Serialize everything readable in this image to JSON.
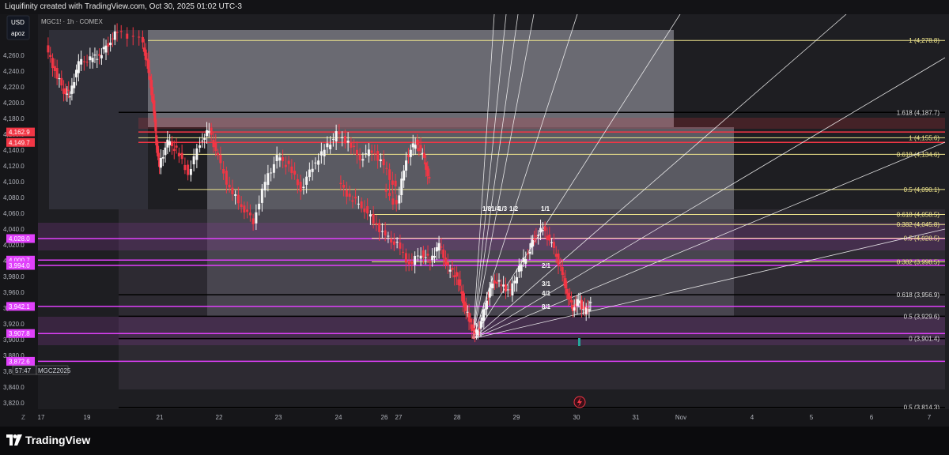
{
  "header": {
    "text": "Liquifinity created with TradingView.com, Oct 30, 2025 01:02 UTC-3"
  },
  "currency": {
    "code": "USD",
    "user": "apoz"
  },
  "symbol_line": "MGC1! · 1h · COMEX",
  "scale_button": "Z",
  "footer": {
    "logo_text": "TradingView"
  },
  "countdown": "57:47",
  "contract": "MGCZ2025",
  "chart_data": {
    "type": "candlestick",
    "symbol": "MGC1!",
    "interval": "1h",
    "exchange": "COMEX",
    "ylim": [
      3790,
      4290
    ],
    "y_ticks": [
      3800,
      3820,
      3840,
      3860,
      3880,
      3900,
      3920,
      3940,
      3960,
      3980,
      4000,
      4020,
      4040,
      4060,
      4080,
      4100,
      4120,
      4140,
      4160,
      4180,
      4200,
      4220,
      4240,
      4260
    ],
    "x_ticks": [
      "17",
      "19",
      "21",
      "22",
      "23",
      "24",
      "26",
      "27",
      "28",
      "29",
      "30",
      "31",
      "Nov",
      "4",
      "5",
      "6",
      "7"
    ],
    "price_path": [
      [
        17.2,
        4270
      ],
      [
        17.5,
        4240
      ],
      [
        17.8,
        4215
      ],
      [
        18.0,
        4210
      ],
      [
        18.3,
        4250
      ],
      [
        18.7,
        4255
      ],
      [
        19.0,
        4260
      ],
      [
        19.3,
        4275
      ],
      [
        19.6,
        4290
      ],
      [
        20.4,
        4280
      ],
      [
        20.6,
        4250
      ],
      [
        20.8,
        4200
      ],
      [
        20.9,
        4150
      ],
      [
        21.0,
        4120
      ],
      [
        21.15,
        4150
      ],
      [
        21.3,
        4140
      ],
      [
        21.5,
        4110
      ],
      [
        21.7,
        4150
      ],
      [
        21.85,
        4165
      ],
      [
        22.0,
        4130
      ],
      [
        22.2,
        4090
      ],
      [
        22.4,
        4070
      ],
      [
        22.6,
        4050
      ],
      [
        22.8,
        4100
      ],
      [
        23.0,
        4130
      ],
      [
        23.2,
        4120
      ],
      [
        23.4,
        4090
      ],
      [
        23.6,
        4120
      ],
      [
        23.8,
        4140
      ],
      [
        24.0,
        4160
      ],
      [
        24.2,
        4150
      ],
      [
        24.4,
        4130
      ],
      [
        24.6,
        4140
      ],
      [
        24.8,
        4120
      ],
      [
        25.0,
        4090
      ],
      [
        25.3,
        4070
      ],
      [
        25.5,
        4130
      ],
      [
        25.7,
        4150
      ],
      [
        25.85,
        4135
      ],
      [
        26.0,
        4100
      ],
      [
        26.2,
        4080
      ],
      [
        26.4,
        4070
      ],
      [
        26.6,
        4050
      ],
      [
        26.8,
        4030
      ],
      [
        27.0,
        4020
      ],
      [
        27.2,
        3995
      ],
      [
        27.4,
        4010
      ],
      [
        27.55,
        4000
      ],
      [
        27.7,
        4020
      ],
      [
        27.85,
        3990
      ],
      [
        28.0,
        3980
      ],
      [
        28.1,
        3950
      ],
      [
        28.2,
        3925
      ],
      [
        28.3,
        3905
      ],
      [
        28.4,
        3920
      ],
      [
        28.5,
        3950
      ],
      [
        28.6,
        3975
      ],
      [
        28.75,
        3970
      ],
      [
        28.9,
        3960
      ],
      [
        29.05,
        3990
      ],
      [
        29.2,
        4010
      ],
      [
        29.3,
        4030
      ],
      [
        29.45,
        4040
      ],
      [
        29.6,
        4020
      ],
      [
        29.75,
        3990
      ],
      [
        29.85,
        3960
      ],
      [
        29.95,
        3940
      ],
      [
        30.05,
        3950
      ],
      [
        30.15,
        3935
      ],
      [
        30.25,
        3945
      ]
    ],
    "horizontal_levels": [
      {
        "price": 4162.9,
        "label": "4,162.9",
        "color": "#f23645"
      },
      {
        "price": 4149.7,
        "label": "4,149.7",
        "color": "#f23645"
      },
      {
        "price": 4028.0,
        "label": "4,028.0",
        "color": "#e040fb"
      },
      {
        "price": 4000.7,
        "label": "4,000.7",
        "color": "#e040fb"
      },
      {
        "price": 3994.0,
        "label": "3,994.0",
        "color": "#e040fb"
      },
      {
        "price": 3942.1,
        "label": "3,942.1",
        "color": "#e040fb"
      },
      {
        "price": 3907.8,
        "label": "3,907.8",
        "color": "#e040fb"
      },
      {
        "price": 3872.6,
        "label": "3,872.6",
        "color": "#e040fb"
      }
    ],
    "fib_levels_upper": [
      {
        "label": "1 (4,278.8)",
        "price": 4278.8
      },
      {
        "label": "1.618 (4,187.7)",
        "price": 4187.7
      },
      {
        "label": "1 (4,155.6)",
        "price": 4155.6
      },
      {
        "label": "0.618 (4,134.6)",
        "price": 4134.6
      },
      {
        "label": "0.5 (4,090.1)",
        "price": 4090.1
      }
    ],
    "fib_levels_lower": [
      {
        "label": "0.618 (4,058.5)",
        "price": 4058.5
      },
      {
        "label": "0.382 (4,045.8)",
        "price": 4045.8
      },
      {
        "label": "0.5 (4,028.5)",
        "price": 4028.5
      },
      {
        "label": "0.382 (3,998.5)",
        "price": 3998.5
      },
      {
        "label": "0.618 (3,956.9)",
        "price": 3956.9
      },
      {
        "label": "0.5 (3,929.6)",
        "price": 3929.6
      },
      {
        "label": "0 (3,901.4)",
        "price": 3901.4
      },
      {
        "label": "0.5 (3,814.3)",
        "price": 3814.3
      }
    ],
    "gann_labels": [
      "1/8",
      "1/4",
      "1/3",
      "1/2",
      "1/1",
      "2/1",
      "3/1",
      "4/1",
      "8/1"
    ],
    "last_price": 3942.1
  },
  "colors": {
    "background": "#1e1e22",
    "candle": "#f5f5f5",
    "resistance": "#f23645",
    "support": "#e040fb",
    "fib": "#f0e68c",
    "gann": "#ffffff"
  }
}
